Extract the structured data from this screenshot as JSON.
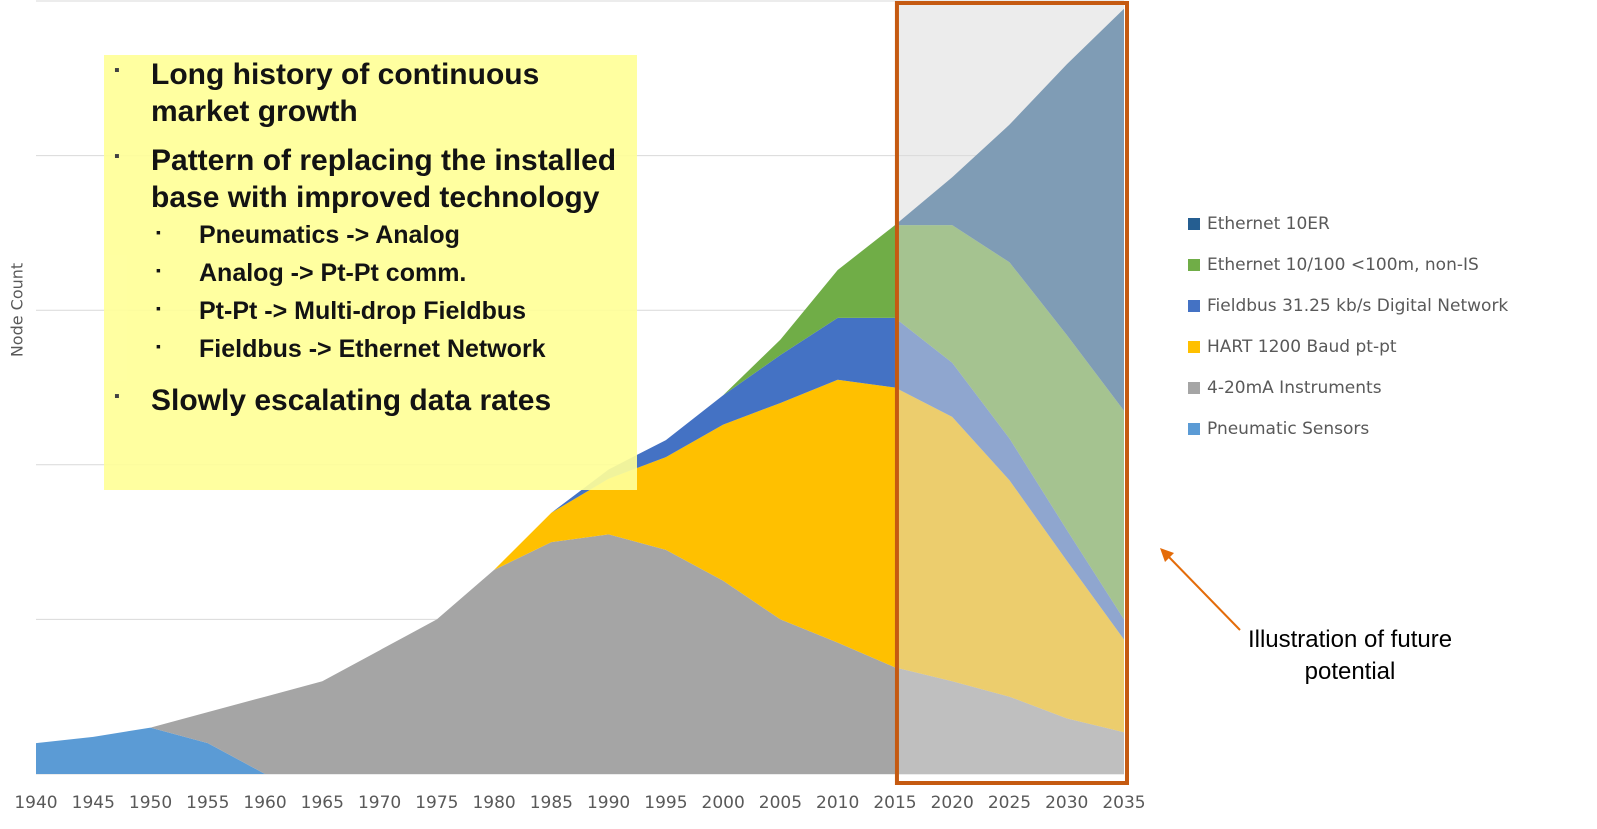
{
  "chart_data": {
    "type": "stacked_area",
    "y_label": "Node Count",
    "x": [
      1940,
      1945,
      1950,
      1955,
      1960,
      1965,
      1970,
      1975,
      1980,
      1985,
      1990,
      1995,
      2000,
      2005,
      2010,
      2015,
      2020,
      2025,
      2030,
      2035
    ],
    "xlim": [
      1940,
      2035
    ],
    "xticks": [
      1940,
      1945,
      1950,
      1955,
      1960,
      1965,
      1970,
      1975,
      1980,
      1985,
      1990,
      1995,
      2000,
      2005,
      2010,
      2015,
      2020,
      2025,
      2030,
      2035
    ],
    "ylim": [
      0,
      5
    ],
    "yticks": [
      0,
      1,
      2,
      3,
      4,
      5
    ],
    "grid": true,
    "legend": "right",
    "series": [
      {
        "name": "Pneumatic Sensors",
        "color": "#5b9bd5",
        "values": [
          0.2,
          0.24,
          0.3,
          0.2,
          0,
          0,
          0,
          0,
          0,
          0,
          0,
          0,
          0,
          0,
          0,
          0,
          0,
          0,
          0,
          0
        ]
      },
      {
        "name": "4-20mA Instruments",
        "color": "#a5a5a5",
        "values": [
          0,
          0,
          0,
          0.2,
          0.5,
          0.6,
          0.8,
          1.0,
          1.32,
          1.5,
          1.55,
          1.45,
          1.25,
          1.0,
          0.85,
          0.69,
          0.6,
          0.5,
          0.36,
          0.27
        ]
      },
      {
        "name": "HART 1200 Baud pt-pt",
        "color": "#ffc000",
        "values": [
          0,
          0,
          0,
          0,
          0,
          0,
          0,
          0,
          0,
          0.19,
          0.36,
          0.6,
          1.01,
          1.4,
          1.7,
          1.81,
          1.71,
          1.4,
          1.02,
          0.6
        ]
      },
      {
        "name": "Fieldbus 31.25 kb/s Digital Network",
        "color": "#4472c4",
        "values": [
          0,
          0,
          0,
          0,
          0,
          0,
          0,
          0,
          0,
          0,
          0.06,
          0.11,
          0.19,
          0.31,
          0.4,
          0.45,
          0.35,
          0.27,
          0.2,
          0.13
        ]
      },
      {
        "name": "Ethernet 10/100 <100m, non-IS",
        "color": "#70ad47",
        "values": [
          0,
          0,
          0,
          0,
          0,
          0,
          0,
          0,
          0,
          0,
          0,
          0,
          0,
          0.1,
          0.31,
          0.6,
          0.89,
          1.14,
          1.26,
          1.35
        ]
      },
      {
        "name": "Ethernet 10ER",
        "color": "#255e91",
        "values": [
          0,
          0,
          0,
          0,
          0,
          0,
          0,
          0,
          0,
          0,
          0,
          0,
          0,
          0,
          0,
          0,
          0.31,
          0.89,
          1.75,
          2.6
        ]
      }
    ],
    "highlight_x": [
      2015,
      2035
    ],
    "annotation": "Illustration of future potential",
    "bullets": [
      "Long history of continuous market growth",
      "Pattern of replacing  the installed base with improved technology",
      "Slowly escalating data rates"
    ],
    "sub_bullets": [
      "Pneumatics -> Analog",
      "Analog -> Pt-Pt comm.",
      "Pt-Pt -> Multi-drop Fieldbus",
      "Fieldbus -> Ethernet Network"
    ]
  }
}
